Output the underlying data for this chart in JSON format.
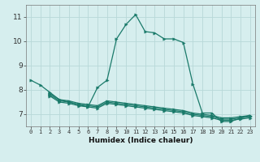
{
  "xlabel": "Humidex (Indice chaleur)",
  "bg_color": "#d6eeee",
  "grid_color": "#b8d8d8",
  "line_color": "#1a7a6a",
  "xlim": [
    -0.5,
    23.5
  ],
  "ylim": [
    6.5,
    11.5
  ],
  "yticks": [
    7,
    8,
    9,
    10,
    11
  ],
  "xticks": [
    0,
    1,
    2,
    3,
    4,
    5,
    6,
    7,
    8,
    9,
    10,
    11,
    12,
    13,
    14,
    15,
    16,
    17,
    18,
    19,
    20,
    21,
    22,
    23
  ],
  "line1_x": [
    0,
    1,
    2,
    3,
    4,
    5,
    6,
    7,
    8,
    9,
    10,
    11,
    12,
    13,
    14,
    15,
    16,
    17,
    18,
    19,
    20,
    21,
    22,
    23
  ],
  "line1_y": [
    8.4,
    8.2,
    7.9,
    7.6,
    7.5,
    7.4,
    7.3,
    8.1,
    8.4,
    10.1,
    10.7,
    11.1,
    10.4,
    10.35,
    10.1,
    10.1,
    9.95,
    8.25,
    7.05,
    7.05,
    6.7,
    6.7,
    6.85,
    6.95
  ],
  "line2_x": [
    2,
    3,
    4,
    5,
    6,
    7,
    8,
    9,
    10,
    11,
    12,
    13,
    14,
    15,
    16,
    17,
    18,
    19,
    20,
    21,
    22,
    23
  ],
  "line2_y": [
    7.85,
    7.6,
    7.55,
    7.45,
    7.4,
    7.35,
    7.55,
    7.5,
    7.45,
    7.4,
    7.35,
    7.3,
    7.25,
    7.2,
    7.15,
    7.05,
    7.0,
    6.95,
    6.85,
    6.85,
    6.9,
    6.95
  ],
  "line3_x": [
    2,
    3,
    4,
    5,
    6,
    7,
    8,
    9,
    10,
    11,
    12,
    13,
    14,
    15,
    16,
    17,
    18,
    19,
    20,
    21,
    22,
    23
  ],
  "line3_y": [
    7.8,
    7.55,
    7.5,
    7.4,
    7.35,
    7.3,
    7.5,
    7.45,
    7.4,
    7.35,
    7.3,
    7.25,
    7.2,
    7.15,
    7.1,
    7.0,
    6.95,
    6.9,
    6.8,
    6.8,
    6.85,
    6.9
  ],
  "line4_x": [
    2,
    3,
    4,
    5,
    6,
    7,
    8,
    9,
    10,
    11,
    12,
    13,
    14,
    15,
    16,
    17,
    18,
    19,
    20,
    21,
    22,
    23
  ],
  "line4_y": [
    7.75,
    7.5,
    7.45,
    7.35,
    7.3,
    7.25,
    7.45,
    7.4,
    7.35,
    7.3,
    7.25,
    7.2,
    7.15,
    7.1,
    7.05,
    6.95,
    6.9,
    6.85,
    6.75,
    6.75,
    6.8,
    6.85
  ],
  "marker_size": 2.5,
  "linewidth": 0.9
}
